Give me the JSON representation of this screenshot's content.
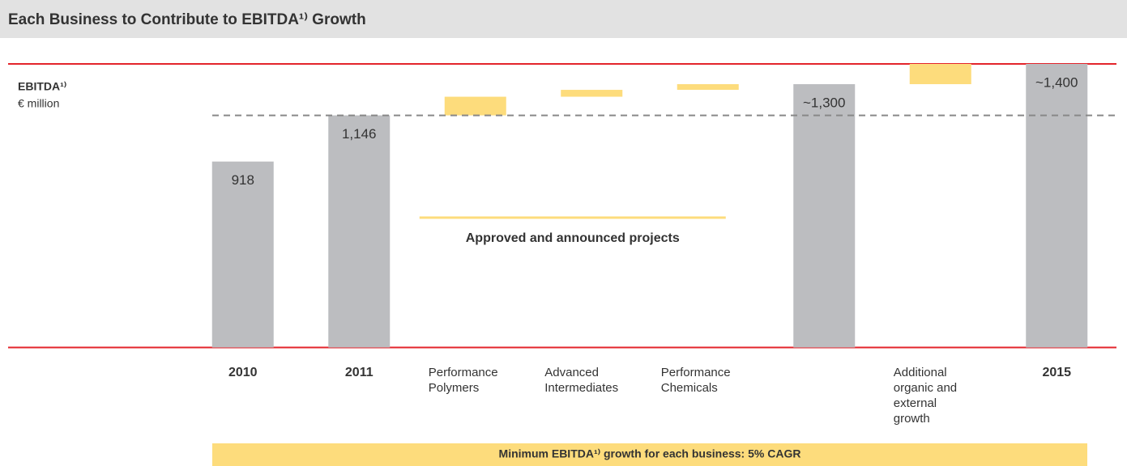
{
  "chart_data": {
    "type": "waterfall",
    "title": "Each Business to Contribute to EBITDA¹⁾ Growth",
    "ylabel": "EBITDA¹⁾",
    "yunit": "€ million",
    "categories": [
      "2010",
      "2011",
      "Performance Polymers",
      "Advanced Intermediates",
      "Performance Chemicals",
      null,
      "Additional organic and external growth",
      "2015"
    ],
    "measure": [
      "total",
      "total",
      "relative",
      "relative",
      "relative",
      "total",
      "relative",
      "total"
    ],
    "values": [
      918,
      1146,
      92,
      34,
      28,
      1300,
      100,
      1400
    ],
    "value_labels": [
      "918",
      "1,146",
      null,
      null,
      null,
      "~1,300",
      null,
      "~1,400"
    ],
    "total_color": "#bcbdc0",
    "relative_color": "#fddc7c",
    "ylim": [
      0,
      1400
    ],
    "annotation": {
      "text": "Approved and announced projects",
      "from": 2,
      "to": 4
    },
    "footer": "Minimum EBITDA¹⁾ growth for each business: 5% CAGR"
  }
}
